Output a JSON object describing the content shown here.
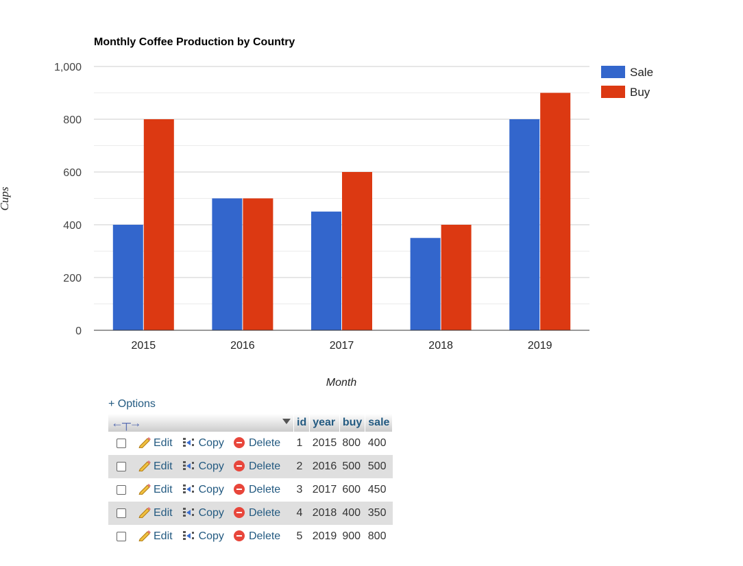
{
  "chart_data": {
    "type": "bar",
    "title": "Monthly Coffee Production by Country",
    "xlabel": "Month",
    "ylabel": "Cups",
    "categories": [
      "2015",
      "2016",
      "2017",
      "2018",
      "2019"
    ],
    "series": [
      {
        "name": "Sale",
        "values": [
          400,
          500,
          450,
          350,
          800
        ],
        "color": "#3366cc"
      },
      {
        "name": "Buy",
        "values": [
          800,
          500,
          600,
          400,
          900
        ],
        "color": "#dc3912"
      }
    ],
    "ylim": [
      0,
      1000
    ],
    "yticks": [
      "0",
      "200",
      "400",
      "600",
      "800",
      "1,000"
    ],
    "grid": true,
    "legend": "right"
  },
  "options_label": "+ Options",
  "table": {
    "columns": [
      "id",
      "year",
      "buy",
      "sale"
    ],
    "actions": {
      "edit": "Edit",
      "copy": "Copy",
      "delete": "Delete"
    },
    "rows": [
      {
        "id": "1",
        "year": "2015",
        "buy": "800",
        "sale": "400"
      },
      {
        "id": "2",
        "year": "2016",
        "buy": "500",
        "sale": "500"
      },
      {
        "id": "3",
        "year": "2017",
        "buy": "600",
        "sale": "450"
      },
      {
        "id": "4",
        "year": "2018",
        "buy": "400",
        "sale": "350"
      },
      {
        "id": "5",
        "year": "2019",
        "buy": "900",
        "sale": "800"
      }
    ]
  }
}
